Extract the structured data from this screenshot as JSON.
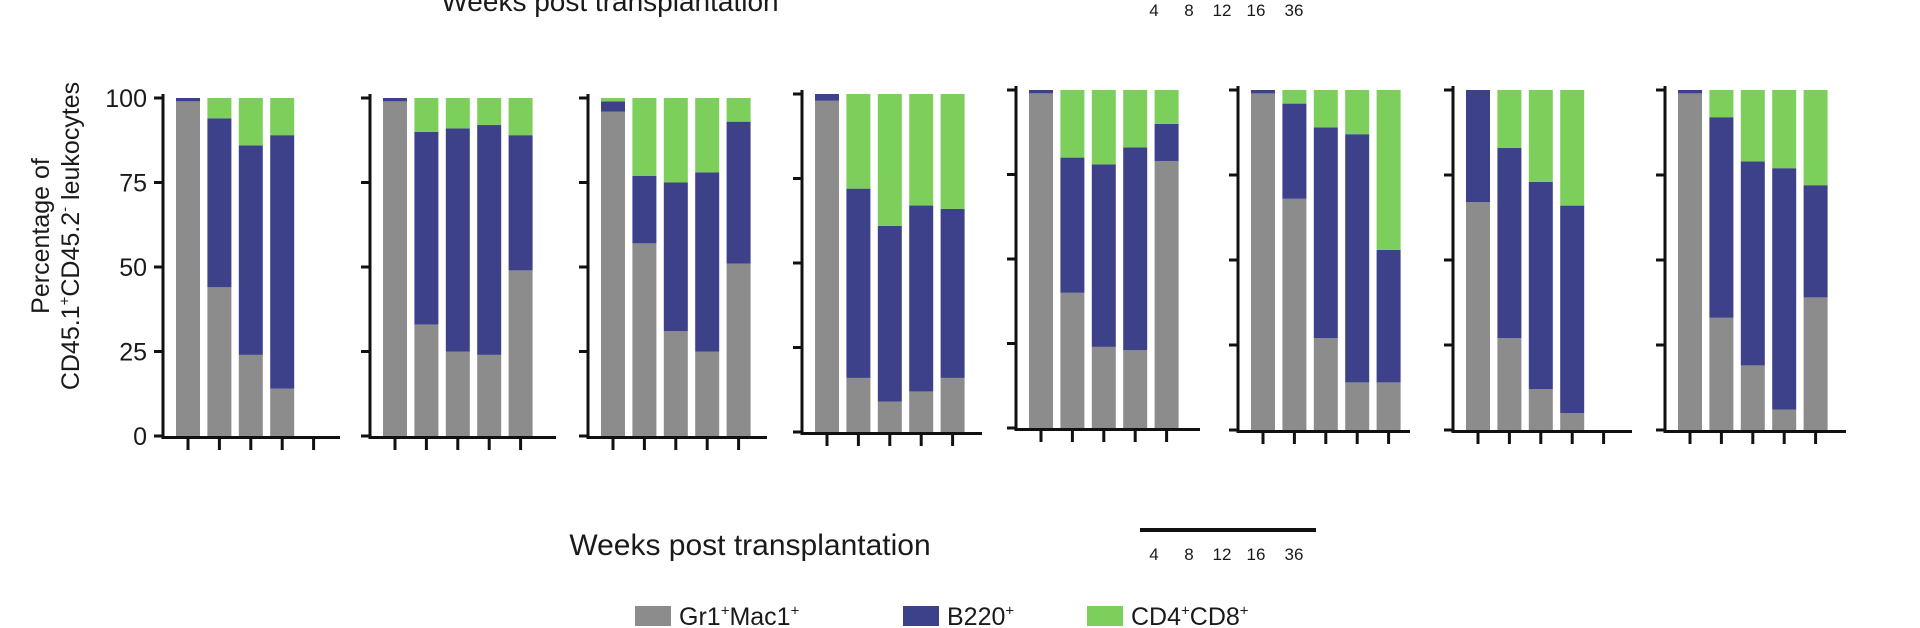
{
  "colors": {
    "gr1": "#8c8c8c",
    "b220": "#3d418a",
    "cd48": "#7ccf5a",
    "axis": "#111111"
  },
  "chart_data": {
    "type": "bar",
    "stacked": true,
    "top_cut_label": "Weeks post transplantation",
    "top_cut_ticks": [
      "4",
      "8",
      "12",
      "16",
      "36"
    ],
    "ylabel_line1": "Percentage of",
    "ylabel_line2_parts": [
      "CD45.1",
      "+",
      "CD45.2",
      "-",
      " leukocytes"
    ],
    "yticks": [
      "0",
      "25",
      "50",
      "75",
      "100"
    ],
    "ylim": [
      0,
      100
    ],
    "xlabel": "Weeks post transplantation",
    "scale_ticks": [
      "4",
      "8",
      "12",
      "16",
      "36"
    ],
    "legend": [
      {
        "parts": [
          "Gr1",
          "+",
          "Mac1",
          "+"
        ],
        "color_key": "gr1"
      },
      {
        "parts": [
          "B220",
          "+"
        ],
        "color_key": "b220"
      },
      {
        "parts": [
          "CD4",
          "+",
          "CD8",
          "+"
        ],
        "color_key": "cd48"
      }
    ],
    "series_names": [
      "Gr1+Mac1+",
      "B220+",
      "CD4+CD8+"
    ],
    "categories": [
      "4",
      "8",
      "12",
      "16",
      "36"
    ],
    "panels": [
      {
        "bars": [
          [
            99,
            1,
            0
          ],
          [
            44,
            50,
            6
          ],
          [
            24,
            62,
            14
          ],
          [
            14,
            75,
            11
          ],
          null
        ]
      },
      {
        "bars": [
          [
            99,
            1,
            0
          ],
          [
            33,
            57,
            10
          ],
          [
            25,
            66,
            9
          ],
          [
            24,
            68,
            8
          ],
          [
            49,
            40,
            11
          ]
        ]
      },
      {
        "bars": [
          [
            96,
            3,
            1
          ],
          [
            57,
            20,
            23
          ],
          [
            31,
            44,
            25
          ],
          [
            25,
            53,
            22
          ],
          [
            51,
            42,
            7
          ]
        ]
      },
      {
        "bars": [
          [
            98,
            2,
            0
          ],
          [
            16,
            56,
            28
          ],
          [
            9,
            52,
            39
          ],
          [
            12,
            55,
            33
          ],
          [
            16,
            50,
            34
          ]
        ]
      },
      {
        "bars": [
          [
            99,
            1,
            0
          ],
          [
            40,
            40,
            20
          ],
          [
            24,
            54,
            22
          ],
          [
            23,
            60,
            17
          ],
          [
            79,
            11,
            10
          ]
        ]
      },
      {
        "bars": [
          [
            99,
            1,
            0
          ],
          [
            68,
            28,
            4
          ],
          [
            27,
            62,
            11
          ],
          [
            14,
            73,
            13
          ],
          [
            14,
            39,
            47
          ]
        ]
      },
      {
        "bars": [
          [
            67,
            33,
            0
          ],
          [
            27,
            56,
            17
          ],
          [
            12,
            61,
            27
          ],
          [
            5,
            61,
            34
          ],
          null
        ]
      },
      {
        "bars": [
          [
            99,
            1,
            0
          ],
          [
            33,
            59,
            8
          ],
          [
            19,
            60,
            21
          ],
          [
            6,
            71,
            23
          ],
          [
            39,
            33,
            28
          ]
        ]
      }
    ]
  }
}
